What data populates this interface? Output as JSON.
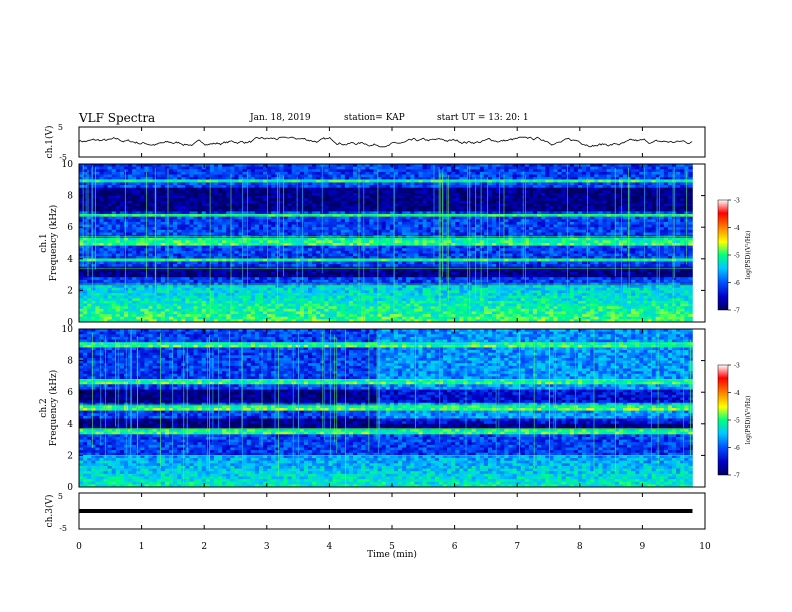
{
  "header": {
    "title": "VLF Spectra",
    "date": "Jan. 18, 2019",
    "station": "station= KAP",
    "start": "start  UT =   13: 20: 1"
  },
  "chart_data": [
    {
      "type": "line",
      "panel": "ch.1 waveform",
      "ylabel": "ch.1(V)",
      "ylim": [
        -5,
        5
      ],
      "yticks": [
        "5",
        "-5"
      ],
      "series": [
        {
          "values_range": [
            -1.6,
            1.6
          ],
          "color": "#000000"
        }
      ]
    },
    {
      "type": "heatmap",
      "panel": "ch.1 spectrogram",
      "ylabel": "ch.1\nFrequency (kHz)",
      "ylabel_lines": [
        "ch.1",
        "Frequency (kHz)"
      ],
      "ylim": [
        0,
        10
      ],
      "yticks": [
        "0",
        "2",
        "4",
        "6",
        "8",
        "10"
      ],
      "colorbar": {
        "label": "log(PSD)(V²/Hz)",
        "range": [
          -7,
          -3
        ],
        "ticks": [
          "-3",
          "-4",
          "-5",
          "-6",
          "-7"
        ]
      },
      "bands_khz": [
        [
          0.3,
          2.4
        ],
        [
          3.0,
          3.4
        ],
        [
          3.8,
          4.0
        ],
        [
          4.8,
          5.4
        ],
        [
          6.6,
          6.8
        ],
        [
          8.8,
          9.0
        ]
      ],
      "dark_bands_khz": [
        [
          2.9,
          3.5
        ],
        [
          7.0,
          8.5
        ]
      ]
    },
    {
      "type": "heatmap",
      "panel": "ch.2 spectrogram",
      "ylabel_lines": [
        "ch.2",
        "Frequency (kHz)"
      ],
      "ylim": [
        0,
        10
      ],
      "yticks": [
        "0",
        "2",
        "4",
        "6",
        "8",
        "10"
      ],
      "colorbar": {
        "label": "log(PSD)(V²/Hz)",
        "range": [
          -7,
          -3
        ],
        "ticks": [
          "-3",
          "-4",
          "-5",
          "-6",
          "-7"
        ]
      },
      "bands_khz": [
        [
          0.3,
          2.0
        ],
        [
          3.3,
          3.7
        ],
        [
          4.9,
          5.2
        ],
        [
          6.5,
          6.8
        ],
        [
          8.9,
          9.1
        ]
      ],
      "dark_bands_khz": [
        [
          3.6,
          4.4
        ],
        [
          5.4,
          6.2
        ]
      ]
    },
    {
      "type": "line",
      "panel": "ch.3 waveform",
      "ylabel": "ch.3(V)",
      "ylim": [
        -5,
        5
      ],
      "yticks": [
        "5",
        "-5"
      ],
      "series": [
        {
          "values": [
            0
          ],
          "color": "#000000"
        }
      ]
    }
  ],
  "xaxis": {
    "label": "Time  (min)",
    "xlim": [
      0,
      10
    ],
    "ticks": [
      "0",
      "1",
      "2",
      "3",
      "4",
      "5",
      "6",
      "7",
      "8",
      "9",
      "10"
    ],
    "data_end_min": 9.8
  },
  "colors": {
    "colormap": [
      "#000060",
      "#0000c8",
      "#0050ff",
      "#00c8ff",
      "#00ff80",
      "#ffff00",
      "#ff8000",
      "#ff0000",
      "#ffffff"
    ]
  }
}
